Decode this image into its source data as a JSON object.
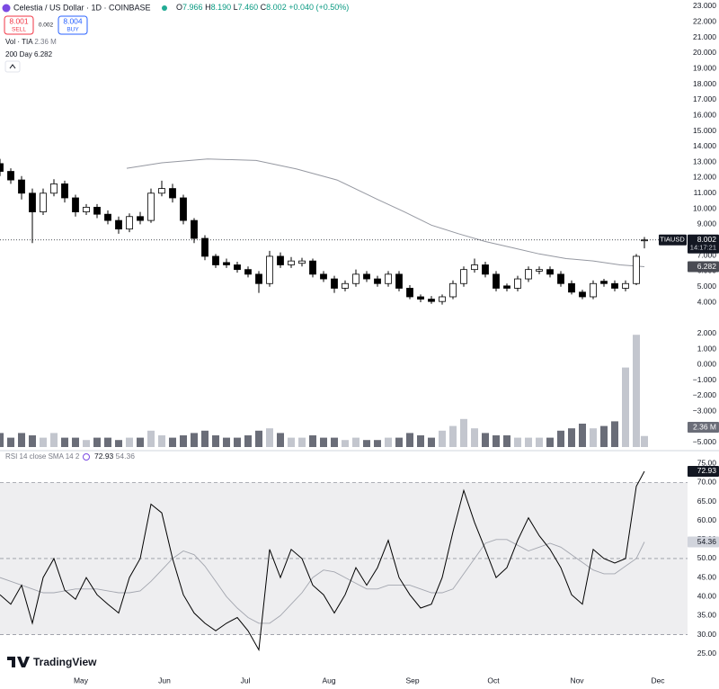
{
  "header": {
    "title": "Celestia / US Dollar · 1D · COINBASE",
    "ohlc": [
      {
        "label": "O",
        "value": "7.966"
      },
      {
        "label": "H",
        "value": "8.190"
      },
      {
        "label": "L",
        "value": "7.460"
      },
      {
        "label": "C",
        "value": "8.002"
      }
    ],
    "change": "+0.040 (+0.50%)",
    "sell_price": "8.001",
    "sell": "SELL",
    "spread": "0.002",
    "buy_price": "8.004",
    "buy": "BUY",
    "volume_label": "Vol · TIA",
    "volume_value": "2.36 M",
    "sma_label": "200 Day",
    "sma_value": "6.282",
    "symbol": "TIAUSD",
    "countdown": "14:17:21",
    "rsi_label": "RSI 14 close SMA 14 2",
    "rsi_value": "72.93",
    "rsi_ma_value": "54.36",
    "logo": "TradingView"
  },
  "chart_data": [
    {
      "type": "candlestick",
      "x": [
        0,
        4,
        8,
        12,
        16,
        20,
        24,
        28,
        32,
        36,
        40,
        44,
        48,
        52,
        56,
        60,
        64,
        68,
        72,
        76,
        80,
        84,
        88,
        92,
        96,
        100,
        104,
        108,
        112,
        116,
        120,
        124,
        128,
        132,
        136,
        140,
        144,
        148,
        152,
        156,
        160,
        164,
        168,
        172,
        176,
        180,
        184,
        188,
        192,
        196,
        200,
        204,
        208,
        212,
        216,
        220,
        224,
        228,
        232,
        236,
        239
      ],
      "open": [
        12.9,
        12.4,
        11.85,
        11.0,
        9.8,
        11.0,
        11.6,
        10.7,
        9.8,
        10.1,
        9.65,
        9.25,
        8.7,
        9.5,
        9.25,
        11.0,
        11.3,
        10.7,
        9.25,
        8.1,
        6.95,
        6.55,
        6.4,
        6.1,
        5.8,
        5.2,
        6.95,
        6.4,
        6.5,
        6.65,
        5.8,
        5.5,
        4.9,
        5.2,
        5.8,
        5.5,
        5.2,
        5.8,
        4.9,
        4.35,
        4.2,
        4.05,
        4.35,
        5.2,
        6.1,
        6.4,
        5.8,
        5.05,
        4.9,
        5.5,
        6.0,
        6.1,
        5.8,
        5.2,
        4.65,
        4.35,
        5.35,
        5.2,
        4.9,
        5.2,
        7.966
      ],
      "high": [
        13.2,
        12.6,
        12.1,
        11.3,
        11.3,
        11.9,
        11.8,
        10.9,
        10.3,
        10.3,
        9.9,
        9.5,
        9.7,
        9.8,
        11.3,
        11.8,
        11.6,
        10.9,
        9.4,
        8.3,
        7.1,
        6.8,
        6.6,
        6.3,
        6.0,
        7.3,
        7.2,
        6.9,
        6.85,
        6.8,
        6.0,
        5.7,
        5.4,
        6.1,
        6.0,
        5.7,
        6.0,
        6.0,
        5.1,
        4.5,
        4.4,
        4.5,
        5.4,
        6.3,
        6.8,
        6.6,
        6.0,
        5.2,
        5.7,
        6.3,
        6.3,
        6.3,
        6.0,
        5.4,
        4.8,
        5.4,
        5.5,
        5.4,
        5.4,
        7.1,
        8.19
      ],
      "low": [
        12.1,
        11.6,
        10.6,
        7.8,
        9.6,
        10.8,
        10.4,
        9.5,
        9.6,
        9.4,
        9.0,
        8.4,
        8.5,
        9.0,
        9.1,
        10.8,
        10.4,
        9.0,
        7.8,
        6.7,
        6.2,
        6.2,
        5.9,
        5.6,
        4.6,
        5.0,
        6.2,
        6.2,
        6.3,
        5.6,
        5.3,
        4.6,
        4.7,
        5.0,
        5.3,
        5.0,
        5.0,
        4.7,
        4.2,
        4.0,
        3.9,
        3.85,
        4.2,
        5.0,
        5.9,
        5.6,
        4.7,
        4.7,
        4.7,
        5.3,
        5.8,
        5.6,
        5.0,
        4.5,
        4.2,
        4.2,
        5.0,
        4.7,
        4.7,
        5.1,
        7.46
      ],
      "close": [
        12.4,
        11.85,
        11.0,
        9.8,
        11.0,
        11.6,
        10.7,
        9.8,
        10.1,
        9.65,
        9.25,
        8.7,
        9.5,
        9.25,
        11.0,
        11.3,
        10.7,
        9.25,
        8.1,
        6.95,
        6.4,
        6.4,
        6.1,
        5.8,
        5.2,
        6.95,
        6.4,
        6.65,
        6.65,
        5.8,
        5.5,
        4.9,
        5.2,
        5.8,
        5.5,
        5.2,
        5.8,
        4.9,
        4.35,
        4.2,
        4.05,
        4.35,
        5.2,
        6.1,
        6.4,
        5.8,
        4.9,
        4.9,
        5.5,
        6.1,
        6.1,
        5.8,
        5.2,
        4.65,
        4.35,
        5.2,
        5.2,
        4.9,
        5.2,
        6.95,
        8.002
      ],
      "up_color": "#ffffff",
      "down_color": "#000000",
      "border_color": "#000000",
      "sma": {
        "x": [
          47,
          60,
          77,
          95,
          110,
          125,
          140,
          150,
          160,
          170,
          180,
          190,
          200,
          210,
          220,
          230,
          239
        ],
        "values": [
          12.6,
          12.95,
          13.2,
          13.1,
          12.55,
          11.85,
          10.6,
          9.8,
          8.95,
          8.4,
          7.9,
          7.5,
          7.1,
          6.8,
          6.65,
          6.4,
          6.282
        ],
        "color": "#9598a1"
      },
      "xlim": [
        0,
        255
      ],
      "ylim": [
        -5.35,
        23.4
      ],
      "yticks": [
        {
          "value": 23,
          "label": "23.000"
        },
        {
          "value": 22,
          "label": "22.000"
        },
        {
          "value": 21,
          "label": "21.000"
        },
        {
          "value": 20,
          "label": "20.000"
        },
        {
          "value": 19,
          "label": "19.000"
        },
        {
          "value": 18,
          "label": "18.000"
        },
        {
          "value": 17,
          "label": "17.000"
        },
        {
          "value": 16,
          "label": "16.000"
        },
        {
          "value": 15,
          "label": "15.000"
        },
        {
          "value": 14,
          "label": "14.000"
        },
        {
          "value": 13,
          "label": "13.000"
        },
        {
          "value": 12,
          "label": "12.000"
        },
        {
          "value": 11,
          "label": "11.000"
        },
        {
          "value": 10,
          "label": "10.000"
        },
        {
          "value": 9,
          "label": "9.000"
        },
        {
          "value": 8,
          "label": "8.000"
        },
        {
          "value": 7,
          "label": "7.000"
        },
        {
          "value": 6,
          "label": "6.000"
        },
        {
          "value": 5,
          "label": "5.000"
        },
        {
          "value": 4,
          "label": "4.000"
        },
        {
          "value": 2,
          "label": "2.000"
        },
        {
          "value": 1,
          "label": "1.000"
        },
        {
          "value": 0,
          "label": "0.000"
        },
        {
          "value": -1,
          "label": "−1.000"
        },
        {
          "value": -2,
          "label": "−2.000"
        },
        {
          "value": -3,
          "label": "−3.000"
        },
        {
          "value": -5,
          "label": "−5.000"
        }
      ],
      "grid": false
    },
    {
      "type": "bar",
      "x": [
        0,
        4,
        8,
        12,
        16,
        20,
        24,
        28,
        32,
        36,
        40,
        44,
        48,
        52,
        56,
        60,
        64,
        68,
        72,
        76,
        80,
        84,
        88,
        92,
        96,
        100,
        104,
        108,
        112,
        116,
        120,
        124,
        128,
        132,
        136,
        140,
        144,
        148,
        152,
        156,
        160,
        164,
        168,
        172,
        176,
        180,
        184,
        188,
        192,
        196,
        200,
        204,
        208,
        212,
        216,
        220,
        224,
        228,
        232,
        236,
        239
      ],
      "values": [
        3,
        2,
        3,
        2.5,
        2,
        3,
        2,
        2,
        1.5,
        2,
        2,
        1.5,
        2,
        2,
        3.5,
        2.5,
        2,
        2.5,
        3,
        3.5,
        2.5,
        2,
        2,
        2.5,
        3.5,
        4,
        3,
        2,
        2,
        2.5,
        2,
        2,
        1.5,
        2,
        1.5,
        1.5,
        2,
        2,
        3,
        2.5,
        2,
        3.5,
        4.5,
        6,
        4,
        3,
        2.5,
        2.5,
        2,
        2,
        2,
        2,
        3.5,
        4,
        5,
        4,
        4.5,
        5.5,
        17,
        24,
        2.36
      ],
      "up_color": "#c3c6ce",
      "down_color": "#6a6d78",
      "xlim": [
        0,
        255
      ],
      "ylim": [
        0,
        25
      ]
    },
    {
      "type": "line",
      "x": [
        0,
        4,
        8,
        12,
        16,
        20,
        24,
        28,
        32,
        36,
        40,
        44,
        48,
        52,
        56,
        60,
        64,
        68,
        72,
        76,
        80,
        84,
        88,
        92,
        96,
        100,
        104,
        108,
        112,
        116,
        120,
        124,
        128,
        132,
        136,
        140,
        144,
        148,
        152,
        156,
        160,
        164,
        168,
        172,
        176,
        180,
        184,
        188,
        192,
        196,
        200,
        204,
        208,
        212,
        216,
        220,
        224,
        228,
        232,
        236,
        239
      ],
      "series": [
        {
          "values": [
            40.5,
            38,
            43,
            33,
            45,
            50,
            41.7,
            39.3,
            45,
            40.5,
            38,
            35.7,
            45,
            50,
            64.3,
            62,
            50,
            40.5,
            35.7,
            33,
            31,
            33,
            34.5,
            31,
            26,
            52.4,
            45,
            52.4,
            50,
            43,
            40.5,
            35.7,
            40.5,
            47.6,
            43,
            47.6,
            54.8,
            45,
            40.5,
            37,
            38,
            45,
            57,
            67.9,
            59.5,
            52.4,
            45,
            47.6,
            54.8,
            60.7,
            56,
            52.4,
            47.6,
            40.5,
            38,
            52.4,
            50,
            48.8,
            50,
            69,
            72.93
          ],
          "color": "#000000"
        },
        {
          "values": [
            45,
            44,
            43,
            42,
            41,
            41,
            41.5,
            42,
            42,
            42,
            41.5,
            41,
            41,
            41.5,
            44,
            47,
            50,
            52,
            51,
            48,
            44,
            40,
            37,
            34.5,
            33,
            33,
            35,
            38,
            41,
            45,
            47,
            46.5,
            45,
            43.5,
            42,
            42,
            43,
            43,
            43,
            42,
            41,
            41,
            42,
            46,
            50,
            54,
            55,
            55,
            53.5,
            52,
            53,
            54,
            53,
            51,
            49,
            47,
            46,
            46,
            48,
            50,
            54.36
          ],
          "color": "#a3a6af"
        }
      ],
      "band": [
        30,
        70
      ],
      "levels": [
        70,
        50,
        30
      ],
      "xlim": [
        0,
        255
      ],
      "ylim": [
        19.5,
        76.7
      ],
      "yticks": [
        {
          "value": 75,
          "label": "75.00"
        },
        {
          "value": 70,
          "label": "70.00"
        },
        {
          "value": 65,
          "label": "65.00"
        },
        {
          "value": 60,
          "label": "60.00"
        },
        {
          "value": 55,
          "label": "55.00"
        },
        {
          "value": 50,
          "label": "50.00"
        },
        {
          "value": 45,
          "label": "45.00"
        },
        {
          "value": 40,
          "label": "40.00"
        },
        {
          "value": 35,
          "label": "35.00"
        },
        {
          "value": 30,
          "label": "30.00"
        },
        {
          "value": 25,
          "label": "25.00"
        }
      ],
      "xticks": [
        {
          "value": 30,
          "label": "May"
        },
        {
          "value": 61,
          "label": "Jun"
        },
        {
          "value": 91,
          "label": "Jul"
        },
        {
          "value": 122,
          "label": "Aug"
        },
        {
          "value": 153,
          "label": "Sep"
        },
        {
          "value": 183,
          "label": "Oct"
        },
        {
          "value": 214,
          "label": "Nov"
        },
        {
          "value": 244,
          "label": "Dec"
        }
      ]
    }
  ]
}
